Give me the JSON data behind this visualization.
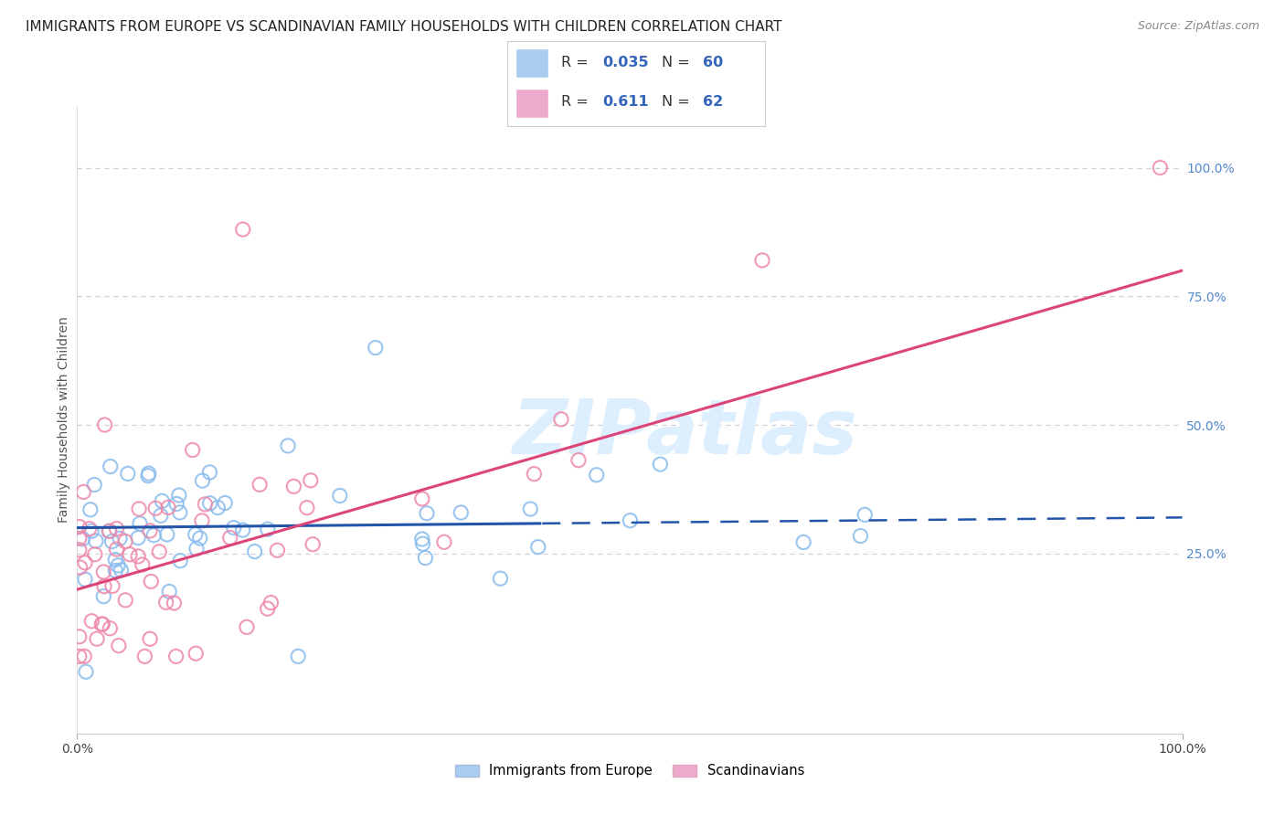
{
  "title": "IMMIGRANTS FROM EUROPE VS SCANDINAVIAN FAMILY HOUSEHOLDS WITH CHILDREN CORRELATION CHART",
  "source": "Source: ZipAtlas.com",
  "ylabel": "Family Households with Children",
  "watermark": "ZIPatlas",
  "legend_blue_label": "Immigrants from Europe",
  "legend_pink_label": "Scandinavians",
  "legend_blue_R": "0.035",
  "legend_blue_N": "60",
  "legend_pink_R": "0.611",
  "legend_pink_N": "62",
  "y_tick_labels_right": [
    "100.0%",
    "75.0%",
    "50.0%",
    "25.0%"
  ],
  "blue_line_color": "#2255aa",
  "pink_line_color": "#dd4477",
  "blue_dot_color": "#88bbee",
  "pink_dot_color": "#ee88aa",
  "legend_blue_fill": "#aaccee",
  "legend_pink_fill": "#eeaacc",
  "grid_color": "#ccccdd",
  "background_color": "#ffffff",
  "watermark_color": "#ddeeff",
  "title_fontsize": 11,
  "source_fontsize": 9,
  "tick_fontsize": 10,
  "ylabel_fontsize": 10,
  "blue_line_intercept": 30.0,
  "blue_line_slope": 0.02,
  "blue_line_cutoff": 42.0,
  "pink_line_intercept": 18.0,
  "pink_line_slope": 0.62,
  "xlim": [
    0,
    100
  ],
  "ylim": [
    -10,
    112
  ]
}
